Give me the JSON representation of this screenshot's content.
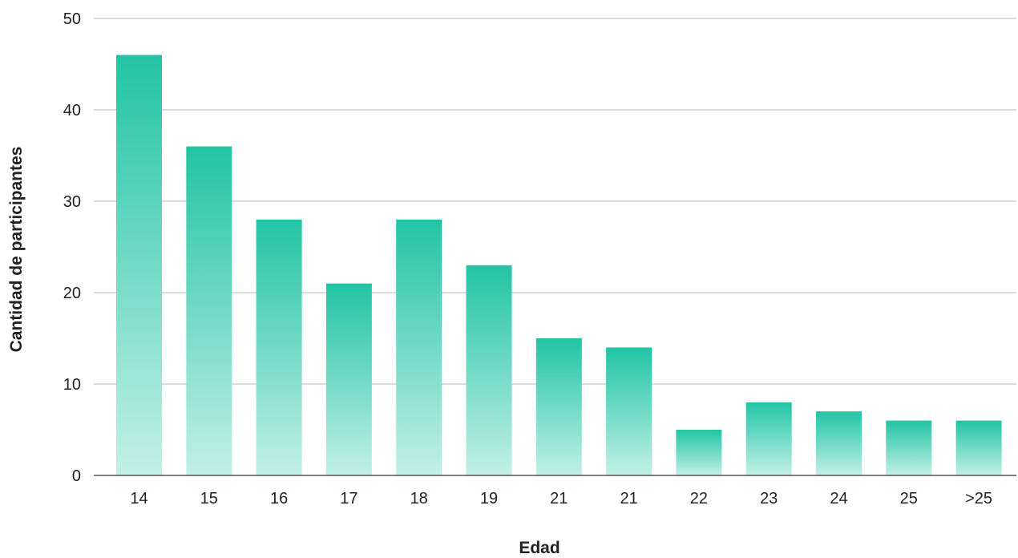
{
  "chart_data": {
    "type": "bar",
    "title": "",
    "xlabel": "Edad",
    "ylabel": "Cantidad de participantes",
    "categories": [
      "14",
      "15",
      "16",
      "17",
      "18",
      "19",
      "21",
      "21",
      "22",
      "23",
      "24",
      "25",
      ">25"
    ],
    "values": [
      46,
      36,
      28,
      21,
      28,
      23,
      15,
      14,
      5,
      8,
      7,
      6,
      6
    ],
    "ylim": [
      0,
      50
    ],
    "yticks": [
      0,
      10,
      20,
      30,
      40,
      50
    ],
    "grid": true,
    "legend": "none",
    "colors": {
      "bar_top": "#22c4a5",
      "bar_bottom": "#c2f0e6",
      "gridline": "#b8b8b8",
      "baseline": "#333333",
      "text": "#222222"
    }
  }
}
